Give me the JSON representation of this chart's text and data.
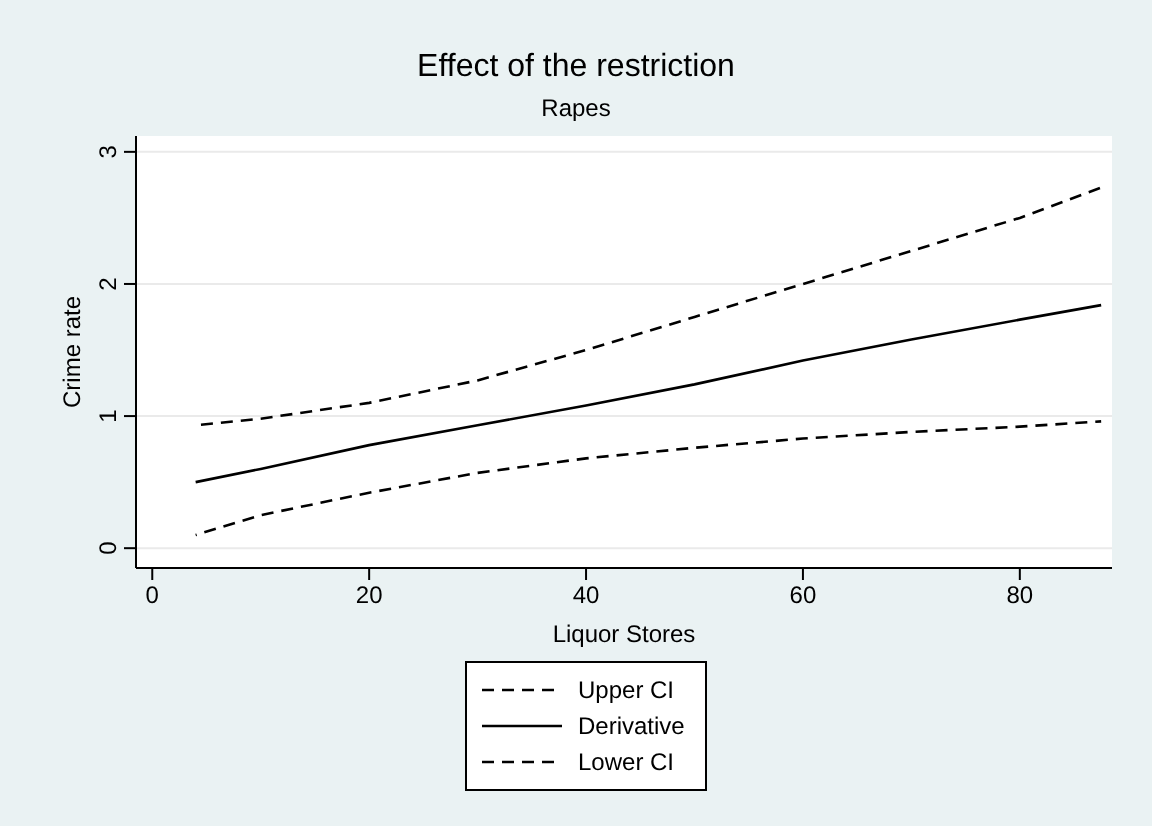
{
  "chart_data": {
    "type": "line",
    "title": "Effect of the restriction",
    "subtitle": "Rapes",
    "xlabel": "Liquor Stores",
    "ylabel": "Crime rate",
    "x": [
      4,
      10,
      20,
      30,
      40,
      50,
      60,
      70,
      80,
      87.5
    ],
    "series": [
      {
        "name": "Upper CI",
        "color": "#000000",
        "line_style": "dashed",
        "values": [
          0.93,
          0.98,
          1.1,
          1.27,
          1.5,
          1.75,
          2.0,
          2.25,
          2.5,
          2.73
        ]
      },
      {
        "name": "Derivative",
        "color": "#000000",
        "line_style": "solid",
        "values": [
          0.5,
          0.6,
          0.78,
          0.93,
          1.08,
          1.24,
          1.42,
          1.58,
          1.73,
          1.84
        ]
      },
      {
        "name": "Lower CI",
        "color": "#000000",
        "line_style": "dashed",
        "values": [
          0.1,
          0.25,
          0.42,
          0.57,
          0.68,
          0.76,
          0.83,
          0.88,
          0.92,
          0.96
        ]
      }
    ],
    "xlim": [
      -1.5,
      88.5
    ],
    "ylim": [
      -0.15,
      3.12
    ],
    "xticks": [
      0,
      20,
      40,
      60,
      80
    ],
    "yticks": [
      0,
      1,
      2,
      3
    ],
    "grid": "y",
    "legend": "bottom",
    "marker": "none"
  }
}
